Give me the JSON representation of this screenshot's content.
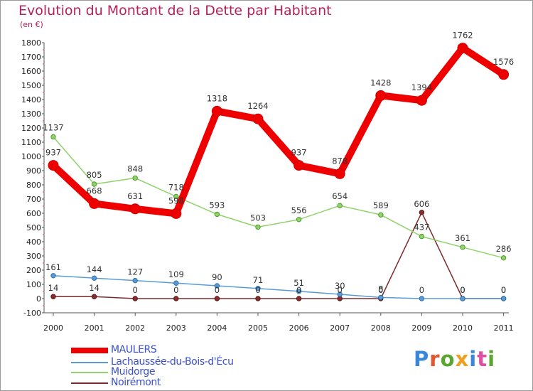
{
  "header": {
    "title": "Evolution du Montant de la Dette par Habitant",
    "subtitle": "(en €)"
  },
  "logo": {
    "text": "Proxiti",
    "colors": [
      "#3a86d8",
      "#e2572b",
      "#58a62f",
      "#f0a020",
      "#3a86d8",
      "#e04fa0",
      "#58a62f"
    ]
  },
  "chart_data": {
    "type": "line",
    "title": "Evolution du Montant de la Dette par Habitant",
    "ylabel": "(en €)",
    "xlabel": "",
    "x": [
      "2000",
      "2001",
      "2002",
      "2003",
      "2004",
      "2005",
      "2006",
      "2007",
      "2008",
      "2009",
      "2010",
      "2011"
    ],
    "ylim": [
      -100,
      1800
    ],
    "yticks": [
      -100,
      0,
      100,
      200,
      300,
      400,
      500,
      600,
      700,
      800,
      900,
      1000,
      1100,
      1200,
      1300,
      1400,
      1500,
      1600,
      1700,
      1800
    ],
    "grid": false,
    "legend_position": "bottom-left",
    "series": [
      {
        "name": "MAULERS",
        "color": "#ee0000",
        "values": [
          937,
          668,
          631,
          598,
          1318,
          1264,
          937,
          878,
          1428,
          1394,
          1762,
          1576
        ],
        "labels": [
          "937",
          "668",
          "631",
          "598",
          "1318",
          "1264",
          "937",
          "878",
          "1428",
          "1394",
          "1762",
          "1576"
        ]
      },
      {
        "name": "Lachaussée-du-Bois-d'Écu",
        "color": "#5b9bd5",
        "values": [
          161,
          144,
          127,
          109,
          90,
          71,
          51,
          30,
          8,
          0,
          0,
          0
        ],
        "labels": [
          "161",
          "144",
          "127",
          "109",
          "90",
          "71",
          "51",
          "30",
          "8",
          "0",
          "0",
          "0"
        ]
      },
      {
        "name": "Muidorge",
        "color": "#8fd36a",
        "values": [
          1137,
          805,
          848,
          718,
          593,
          503,
          556,
          654,
          589,
          437,
          361,
          286
        ],
        "labels": [
          "1137",
          "805",
          "848",
          "718",
          "593",
          "503",
          "556",
          "654",
          "589",
          "437",
          "361",
          "286"
        ]
      },
      {
        "name": "Noirémont",
        "color": "#7d2a2a",
        "values": [
          14,
          14,
          0,
          0,
          0,
          0,
          0,
          0,
          0,
          606,
          0,
          0
        ],
        "labels": [
          "14",
          "14",
          "0",
          "0",
          "0",
          "0",
          "0",
          "0",
          "0",
          "606",
          "0",
          "0"
        ]
      }
    ]
  }
}
